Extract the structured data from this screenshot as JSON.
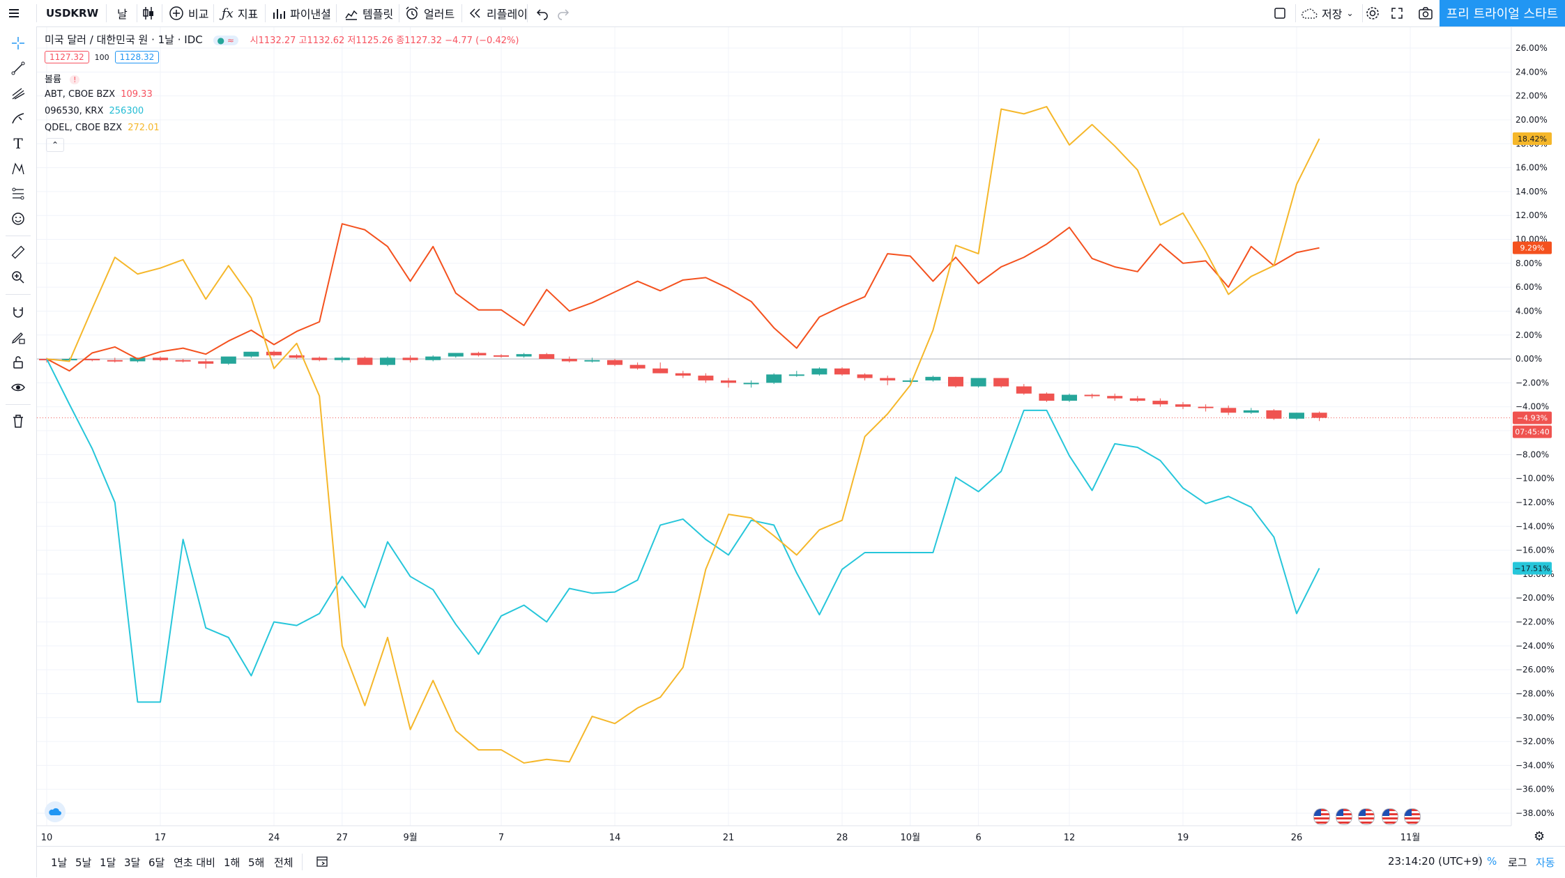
{
  "toolbar": {
    "symbol": "USDKRW",
    "interval": "날",
    "compare": "비교",
    "indicators": "지표",
    "pine": "파이낸셜",
    "templates": "템플릿",
    "alert": "얼러트",
    "replay": "리플레이",
    "save": "저장",
    "trial": "프리 트라이얼 스타트"
  },
  "header": {
    "title": "미국 달러 / 대한민국 원 · 1날 · IDC",
    "ohlc_o": "시1132.27",
    "ohlc_h": "고1132.62",
    "ohlc_l": "저1125.26",
    "ohlc_c": "종1127.32",
    "ohlc_chg": "−4.77 (−0.42%)",
    "bid": "1127.32",
    "spread": "100",
    "ask": "1128.32",
    "volume_label": "볼륨",
    "volume_warn": "!"
  },
  "legend": [
    {
      "name": "ABT, CBOE BZX",
      "value": "109.33",
      "color": "#f7525f"
    },
    {
      "name": "096530, KRX",
      "value": "256300",
      "color": "#22bcd4"
    },
    {
      "name": "QDEL, CBOE BZX",
      "value": "272.01",
      "color": "#f5b72a"
    }
  ],
  "price_labels": {
    "qdel": "18.42%",
    "abt": "9.29%",
    "usdkrw": "−4.93%",
    "countdown": "07:45:40",
    "seegene": "−17.51%"
  },
  "bottom": {
    "ranges": [
      "1날",
      "5날",
      "1달",
      "3달",
      "6달",
      "연초 대비",
      "1해",
      "5해",
      "전체"
    ],
    "clock": "23:14:20 (UTC+9)",
    "pct": "%",
    "log": "로그",
    "auto": "자동"
  },
  "chart_data": {
    "type": "line",
    "ylim": [
      -39,
      27
    ],
    "y_tick_labels": [
      "26.00%",
      "24.00%",
      "22.00%",
      "20.00%",
      "18.00%",
      "16.00%",
      "14.00%",
      "12.00%",
      "10.00%",
      "8.00%",
      "6.00%",
      "4.00%",
      "2.00%",
      "0.00%",
      "−2.00%",
      "−4.00%",
      "−6.00%",
      "−8.00%",
      "−10.00%",
      "−12.00%",
      "−14.00%",
      "−16.00%",
      "−18.00%",
      "−20.00%",
      "−22.00%",
      "−24.00%",
      "−26.00%",
      "−28.00%",
      "−30.00%",
      "−32.00%",
      "−34.00%",
      "−36.00%",
      "−38.00%"
    ],
    "x_ticks": [
      {
        "i": 0,
        "label": "10"
      },
      {
        "i": 5,
        "label": "17"
      },
      {
        "i": 10,
        "label": "24"
      },
      {
        "i": 13,
        "label": "27"
      },
      {
        "i": 16,
        "label": "9월"
      },
      {
        "i": 20,
        "label": "7"
      },
      {
        "i": 25,
        "label": "14"
      },
      {
        "i": 30,
        "label": "21"
      },
      {
        "i": 35,
        "label": "28"
      },
      {
        "i": 38,
        "label": "10월"
      },
      {
        "i": 41,
        "label": "6"
      },
      {
        "i": 45,
        "label": "12"
      },
      {
        "i": 50,
        "label": "19"
      },
      {
        "i": 55,
        "label": "26"
      },
      {
        "i": 60,
        "label": "11월"
      }
    ],
    "series": [
      {
        "name": "ABT, CBOE BZX",
        "color": "#f4511e",
        "values": [
          0,
          -1,
          0.5,
          1,
          0,
          0.6,
          0.9,
          0.4,
          1.5,
          2.4,
          1.2,
          2.3,
          3.1,
          11.3,
          10.8,
          9.4,
          6.5,
          9.4,
          5.5,
          4.1,
          4.1,
          2.8,
          5.8,
          4,
          4.7,
          5.6,
          6.5,
          5.7,
          6.6,
          6.8,
          5.9,
          4.8,
          2.6,
          0.9,
          3.5,
          4.4,
          5.2,
          8.8,
          8.6,
          6.5,
          8.5,
          6.3,
          7.7,
          8.5,
          9.6,
          11,
          8.4,
          7.7,
          7.3,
          9.6,
          8,
          8.2,
          6,
          9.4,
          7.8,
          8.9,
          9.29
        ]
      },
      {
        "name": "096530, KRX",
        "color": "#26c6da",
        "values": [
          0,
          -3.8,
          -7.5,
          -12,
          -28.7,
          -28.7,
          -15.1,
          -22.5,
          -23.3,
          -26.5,
          -22,
          -22.3,
          -21.3,
          -18.2,
          -20.8,
          -15.3,
          -18.2,
          -19.3,
          -22.2,
          -24.7,
          -21.5,
          -20.6,
          -22,
          -19.2,
          -19.6,
          -19.5,
          -18.5,
          -13.9,
          -13.4,
          -15.1,
          -16.4,
          -13.5,
          -13.9,
          -17.9,
          -21.4,
          -17.6,
          -16.2,
          -16.2,
          -16.2,
          -16.2,
          -9.9,
          -11.1,
          -9.4,
          -4.3,
          -4.3,
          -8.1,
          -11,
          -7.1,
          -7.4,
          -8.5,
          -10.8,
          -12.1,
          -11.5,
          -12.4,
          -14.9,
          -21.3,
          -17.51
        ]
      },
      {
        "name": "QDEL, CBOE BZX",
        "color": "#f5b72a",
        "values": [
          0,
          -0.2,
          4.2,
          8.5,
          7.1,
          7.6,
          8.3,
          5,
          7.8,
          5.1,
          -0.8,
          1.3,
          -3.1,
          -24,
          -29,
          -23.3,
          -31,
          -26.9,
          -31.1,
          -32.7,
          -32.7,
          -33.8,
          -33.5,
          -33.7,
          -29.9,
          -30.5,
          -29.2,
          -28.3,
          -25.8,
          -17.6,
          -13,
          -13.3,
          -14.8,
          -16.4,
          -14.3,
          -13.5,
          -6.5,
          -4.6,
          -2.2,
          2.4,
          9.5,
          8.8,
          20.9,
          20.5,
          21.1,
          17.9,
          19.6,
          17.8,
          15.8,
          11.2,
          12.2,
          9,
          5.4,
          6.9,
          7.8,
          14.6,
          18.42
        ]
      }
    ],
    "candles": {
      "name": "USDKRW",
      "up_color": "#26a69a",
      "down_color": "#ef5350",
      "data": [
        [
          0.0,
          0.1,
          -0.3,
          -0.1
        ],
        [
          -0.1,
          0.1,
          -0.2,
          -0.0
        ],
        [
          -0.0,
          0.0,
          -0.2,
          -0.1
        ],
        [
          -0.1,
          0.1,
          -0.3,
          -0.2
        ],
        [
          -0.2,
          0.1,
          -0.3,
          0.1
        ],
        [
          0.1,
          0.2,
          -0.2,
          -0.1
        ],
        [
          -0.1,
          0.0,
          -0.3,
          -0.2
        ],
        [
          -0.2,
          0.0,
          -0.8,
          -0.4
        ],
        [
          -0.4,
          0.0,
          -0.5,
          0.2
        ],
        [
          0.2,
          0.6,
          0.1,
          0.6
        ],
        [
          0.6,
          0.7,
          0.2,
          0.3
        ],
        [
          0.3,
          0.4,
          0.0,
          0.1
        ],
        [
          0.1,
          0.2,
          -0.2,
          -0.1
        ],
        [
          -0.1,
          0.2,
          -0.3,
          0.1
        ],
        [
          0.1,
          0.2,
          -0.5,
          -0.5
        ],
        [
          -0.5,
          0.2,
          -0.6,
          0.1
        ],
        [
          0.1,
          0.3,
          -0.3,
          -0.1
        ],
        [
          -0.1,
          0.3,
          -0.2,
          0.2
        ],
        [
          0.2,
          0.5,
          0.1,
          0.5
        ],
        [
          0.5,
          0.6,
          0.2,
          0.3
        ],
        [
          0.3,
          0.4,
          0.1,
          0.2
        ],
        [
          0.2,
          0.5,
          0.1,
          0.4
        ],
        [
          0.4,
          0.5,
          0.0,
          0.0
        ],
        [
          0.0,
          0.2,
          -0.3,
          -0.2
        ],
        [
          -0.2,
          0.1,
          -0.3,
          -0.1
        ],
        [
          -0.1,
          0.0,
          -0.6,
          -0.5
        ],
        [
          -0.5,
          -0.3,
          -0.9,
          -0.8
        ],
        [
          -0.8,
          -0.3,
          -1.2,
          -1.2
        ],
        [
          -1.2,
          -1.0,
          -1.6,
          -1.4
        ],
        [
          -1.4,
          -1.2,
          -2.0,
          -1.8
        ],
        [
          -1.8,
          -1.6,
          -2.4,
          -2.0
        ],
        [
          -2.0,
          -1.8,
          -2.4,
          -2.0
        ],
        [
          -2.0,
          -1.2,
          -2.1,
          -1.3
        ],
        [
          -1.3,
          -1.0,
          -1.5,
          -1.3
        ],
        [
          -1.3,
          -0.7,
          -1.4,
          -0.8
        ],
        [
          -0.8,
          -0.7,
          -1.4,
          -1.3
        ],
        [
          -1.3,
          -1.2,
          -1.8,
          -1.6
        ],
        [
          -1.6,
          -1.4,
          -2.2,
          -1.8
        ],
        [
          -1.8,
          -1.6,
          -2.0,
          -1.8
        ],
        [
          -1.8,
          -1.4,
          -1.9,
          -1.5
        ],
        [
          -1.5,
          -1.5,
          -2.4,
          -2.3
        ],
        [
          -2.3,
          -1.6,
          -2.4,
          -1.6
        ],
        [
          -1.6,
          -1.6,
          -2.4,
          -2.3
        ],
        [
          -2.3,
          -2.1,
          -3.0,
          -2.9
        ],
        [
          -2.9,
          -2.8,
          -3.6,
          -3.5
        ],
        [
          -3.5,
          -2.9,
          -3.6,
          -3.0
        ],
        [
          -3.0,
          -2.9,
          -3.3,
          -3.1
        ],
        [
          -3.1,
          -2.9,
          -3.5,
          -3.3
        ],
        [
          -3.3,
          -3.1,
          -3.6,
          -3.5
        ],
        [
          -3.5,
          -3.3,
          -4.0,
          -3.8
        ],
        [
          -3.8,
          -3.6,
          -4.2,
          -4.0
        ],
        [
          -4.0,
          -3.8,
          -4.4,
          -4.1
        ],
        [
          -4.1,
          -3.9,
          -4.7,
          -4.5
        ],
        [
          -4.5,
          -4.1,
          -4.6,
          -4.3
        ],
        [
          -4.3,
          -4.2,
          -5.1,
          -5.0
        ],
        [
          -5.0,
          -4.5,
          -5.1,
          -4.5
        ],
        [
          -4.5,
          -4.4,
          -5.2,
          -4.93
        ]
      ]
    }
  }
}
